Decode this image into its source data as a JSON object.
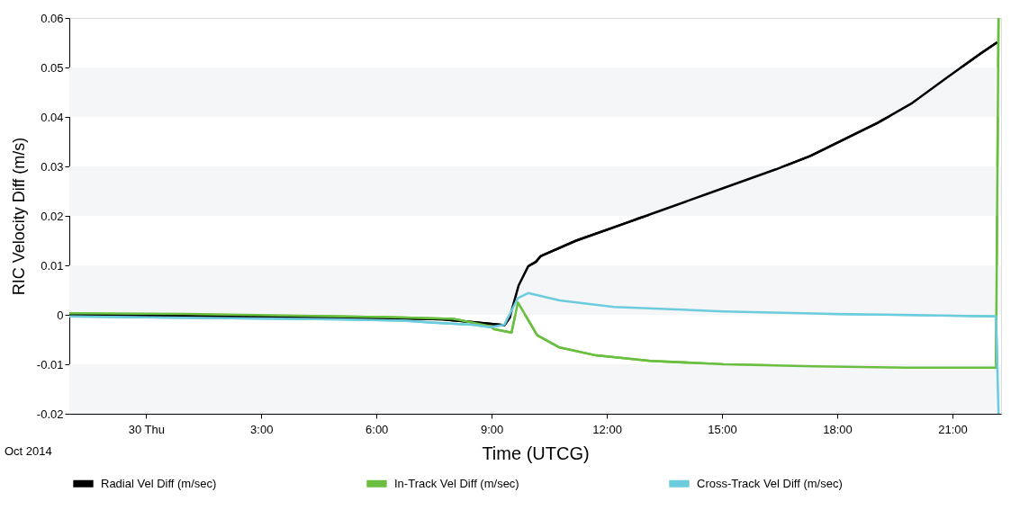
{
  "chart_data": {
    "type": "line",
    "xlabel": "Time (UTCG)",
    "ylabel": "RIC Velocity Diff (m/s)",
    "annotations": [
      "Oct 2014"
    ],
    "xlim": [
      "2014-10-29T22:00",
      "2014-10-30T22:16"
    ],
    "ylim": [
      -0.02,
      0.06
    ],
    "xticks": [
      {
        "value": "2014-10-30T00:00",
        "label": "30 Thu"
      },
      {
        "value": "2014-10-30T03:00",
        "label": "3:00"
      },
      {
        "value": "2014-10-30T06:00",
        "label": "6:00"
      },
      {
        "value": "2014-10-30T09:00",
        "label": "9:00"
      },
      {
        "value": "2014-10-30T12:00",
        "label": "12:00"
      },
      {
        "value": "2014-10-30T15:00",
        "label": "15:00"
      },
      {
        "value": "2014-10-30T18:00",
        "label": "18:00"
      },
      {
        "value": "2014-10-30T21:00",
        "label": "21:00"
      }
    ],
    "yticks": [
      -0.02,
      -0.01,
      0,
      0.01,
      0.02,
      0.03,
      0.04,
      0.05,
      0.06
    ],
    "bands": [
      {
        "axis": "y",
        "from": -0.02,
        "to": -0.01,
        "color": "#f5f6f8"
      },
      {
        "axis": "y",
        "from": 0,
        "to": 0.01,
        "color": "#f5f6f8"
      },
      {
        "axis": "y",
        "from": 0.02,
        "to": 0.03,
        "color": "#f5f6f8"
      },
      {
        "axis": "y",
        "from": 0.04,
        "to": 0.05,
        "color": "#f5f6f8"
      }
    ],
    "legend": "bottom",
    "marker": "none",
    "line_style": "solid",
    "series": [
      {
        "name": "Radial Vel Diff (m/sec)",
        "color": "#000000",
        "x": [
          "2014-10-29T22:00",
          "2014-10-30T01:48",
          "2014-10-30T04:30",
          "2014-10-30T06:24",
          "2014-10-30T07:42",
          "2014-10-30T09:06",
          "2014-10-30T09:20",
          "2014-10-30T09:28",
          "2014-10-30T09:42",
          "2014-10-30T09:57",
          "2014-10-30T10:09",
          "2014-10-30T10:17",
          "2014-10-30T11:12",
          "2014-10-30T12:33",
          "2014-10-30T12:48",
          "2014-10-30T14:36",
          "2014-10-30T16:24",
          "2014-10-30T17:18",
          "2014-10-30T19:03",
          "2014-10-30T19:57",
          "2014-10-30T20:50",
          "2014-10-30T21:44",
          "2014-10-30T22:10"
        ],
        "values": [
          0.0001,
          -0.0003,
          -0.0006,
          -0.0007,
          -0.0009,
          -0.0019,
          -0.0021,
          -0.0006,
          0.0059,
          0.0098,
          0.0107,
          0.0119,
          0.015,
          0.0187,
          0.0194,
          0.0244,
          0.0294,
          0.0321,
          0.0388,
          0.0428,
          0.0478,
          0.0528,
          0.0551
        ]
      },
      {
        "name": "In-Track Vel Diff (m/sec)",
        "color": "#6abf40",
        "x": [
          "2014-10-29T22:00",
          "2014-10-30T01:00",
          "2014-10-30T04:00",
          "2014-10-30T06:30",
          "2014-10-30T08:00",
          "2014-10-30T08:58",
          "2014-10-30T09:04",
          "2014-10-30T09:31",
          "2014-10-30T09:41",
          "2014-10-30T10:11",
          "2014-10-30T10:46",
          "2014-10-30T11:43",
          "2014-10-30T13:08",
          "2014-10-30T15:02",
          "2014-10-30T17:24",
          "2014-10-30T19:47",
          "2014-10-30T22:08",
          "2014-10-30T22:12"
        ],
        "values": [
          0.0003,
          0.0002,
          -0.0002,
          -0.0005,
          -0.0008,
          -0.0023,
          -0.0029,
          -0.0036,
          0.0025,
          -0.0041,
          -0.0066,
          -0.0082,
          -0.0093,
          -0.01,
          -0.0104,
          -0.0107,
          -0.0107,
          0.06
        ]
      },
      {
        "name": "Cross-Track Vel Diff (m/sec)",
        "color": "#6ccbdc",
        "x": [
          "2014-10-29T22:00",
          "2014-10-30T01:00",
          "2014-10-30T05:00",
          "2014-10-30T06:42",
          "2014-10-30T07:30",
          "2014-10-30T08:30",
          "2014-10-30T08:58",
          "2014-10-30T09:20",
          "2014-10-30T09:41",
          "2014-10-30T09:57",
          "2014-10-30T10:46",
          "2014-10-30T12:11",
          "2014-10-30T15:02",
          "2014-10-30T17:53",
          "2014-10-30T22:08",
          "2014-10-30T22:12"
        ],
        "values": [
          -0.0003,
          -0.0006,
          -0.0009,
          -0.0012,
          -0.0016,
          -0.002,
          -0.0025,
          -0.002,
          0.0034,
          0.0044,
          0.0029,
          0.0016,
          0.0007,
          0.0002,
          -0.0003,
          -0.02
        ]
      }
    ]
  }
}
